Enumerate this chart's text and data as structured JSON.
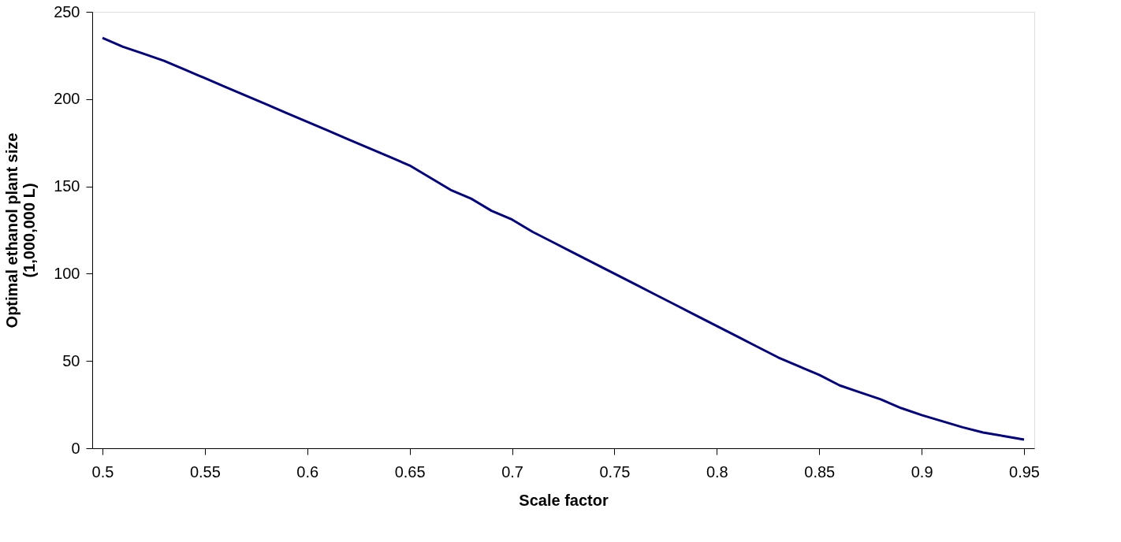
{
  "chart_data": {
    "type": "line",
    "xlabel": "Scale factor",
    "ylabel": "Optimal ethanol  plant  size\n(1,000,000 L)",
    "x": [
      0.5,
      0.51,
      0.52,
      0.53,
      0.54,
      0.55,
      0.56,
      0.57,
      0.58,
      0.59,
      0.6,
      0.61,
      0.62,
      0.63,
      0.64,
      0.65,
      0.66,
      0.67,
      0.68,
      0.69,
      0.7,
      0.71,
      0.72,
      0.73,
      0.74,
      0.75,
      0.76,
      0.77,
      0.78,
      0.79,
      0.8,
      0.81,
      0.82,
      0.83,
      0.84,
      0.85,
      0.86,
      0.87,
      0.88,
      0.89,
      0.9,
      0.91,
      0.92,
      0.93,
      0.94,
      0.95
    ],
    "series": [
      {
        "color": "#000080",
        "values": [
          235,
          230,
          226,
          222,
          217,
          212,
          207,
          202,
          197,
          192,
          187,
          182,
          177,
          172,
          167,
          162,
          155,
          148,
          143,
          136,
          131,
          124,
          118,
          112,
          106,
          100,
          94,
          88,
          82,
          76,
          70,
          64,
          58,
          52,
          47,
          42,
          36,
          32,
          28,
          23,
          19,
          15.5,
          12,
          9,
          7,
          5
        ]
      }
    ],
    "xlim": [
      0.495,
      0.955
    ],
    "xticks": [
      0.5,
      0.55,
      0.6,
      0.65,
      0.7,
      0.75,
      0.8,
      0.85,
      0.9,
      0.95
    ],
    "ylim": [
      0,
      250
    ],
    "yticks": [
      0,
      50,
      100,
      150,
      200,
      250
    ],
    "grid": false,
    "marker": "none",
    "line_style": "solid"
  }
}
